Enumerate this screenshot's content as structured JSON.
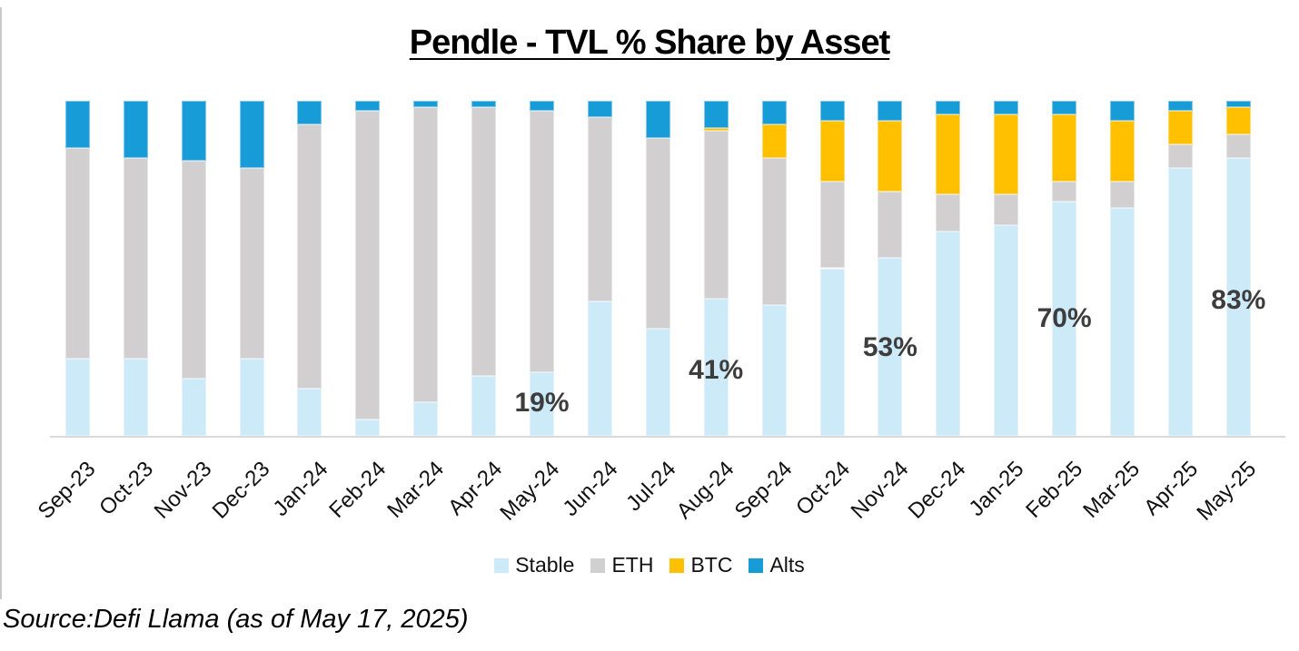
{
  "header": {
    "title": "Pendle - TVL % Share by Asset"
  },
  "footer": {
    "source_note": "Source:Defi Llama (as of May 17, 2025)"
  },
  "colors": {
    "stable": "#CDEAF9",
    "eth": "#D1CFCF",
    "btc": "#FFC000",
    "alts": "#179CD8",
    "axis_line": "#D9D9D9",
    "annotation_text": "#3D3D3D"
  },
  "chart_data": {
    "type": "bar",
    "stacked": true,
    "unit": "%",
    "title": "Pendle - TVL % Share by Asset",
    "xlabel": "",
    "ylabel": "",
    "ylim": [
      0,
      100
    ],
    "grid": false,
    "legend_position": "bottom",
    "categories": [
      "Sep-23",
      "Oct-23",
      "Nov-23",
      "Dec-23",
      "Jan-24",
      "Feb-24",
      "Mar-24",
      "Apr-24",
      "May-24",
      "Jun-24",
      "Jul-24",
      "Aug-24",
      "Sep-24",
      "Oct-24",
      "Nov-24",
      "Dec-24",
      "Jan-25",
      "Feb-25",
      "Mar-25",
      "Apr-25",
      "May-25"
    ],
    "series": [
      {
        "name": "Stable",
        "color": "#CDEAF9",
        "values": [
          23,
          23,
          17,
          23,
          14,
          5,
          10,
          18,
          19,
          40,
          32,
          41,
          39,
          50,
          53,
          61,
          63,
          70,
          68,
          80,
          83
        ]
      },
      {
        "name": "ETH",
        "color": "#D1CFCF",
        "values": [
          63,
          60,
          65,
          57,
          79,
          92,
          88,
          80,
          78,
          55,
          57,
          50,
          44,
          26,
          20,
          11,
          9,
          6,
          8,
          7,
          7
        ]
      },
      {
        "name": "BTC",
        "color": "#FFC000",
        "values": [
          0,
          0,
          0,
          0,
          0,
          0,
          0,
          0,
          0,
          0,
          0,
          1,
          10,
          18,
          21,
          24,
          24,
          20,
          18,
          10,
          8
        ]
      },
      {
        "name": "Alts",
        "color": "#179CD8",
        "values": [
          14,
          17,
          18,
          20,
          7,
          3,
          2,
          2,
          3,
          5,
          11,
          8,
          7,
          6,
          6,
          4,
          4,
          4,
          6,
          3,
          2
        ]
      }
    ],
    "annotations": [
      {
        "category": "May-24",
        "text": "19%"
      },
      {
        "category": "Aug-24",
        "text": "41%"
      },
      {
        "category": "Nov-24",
        "text": "53%"
      },
      {
        "category": "Feb-25",
        "text": "70%"
      },
      {
        "category": "May-25",
        "text": "83%"
      }
    ]
  }
}
